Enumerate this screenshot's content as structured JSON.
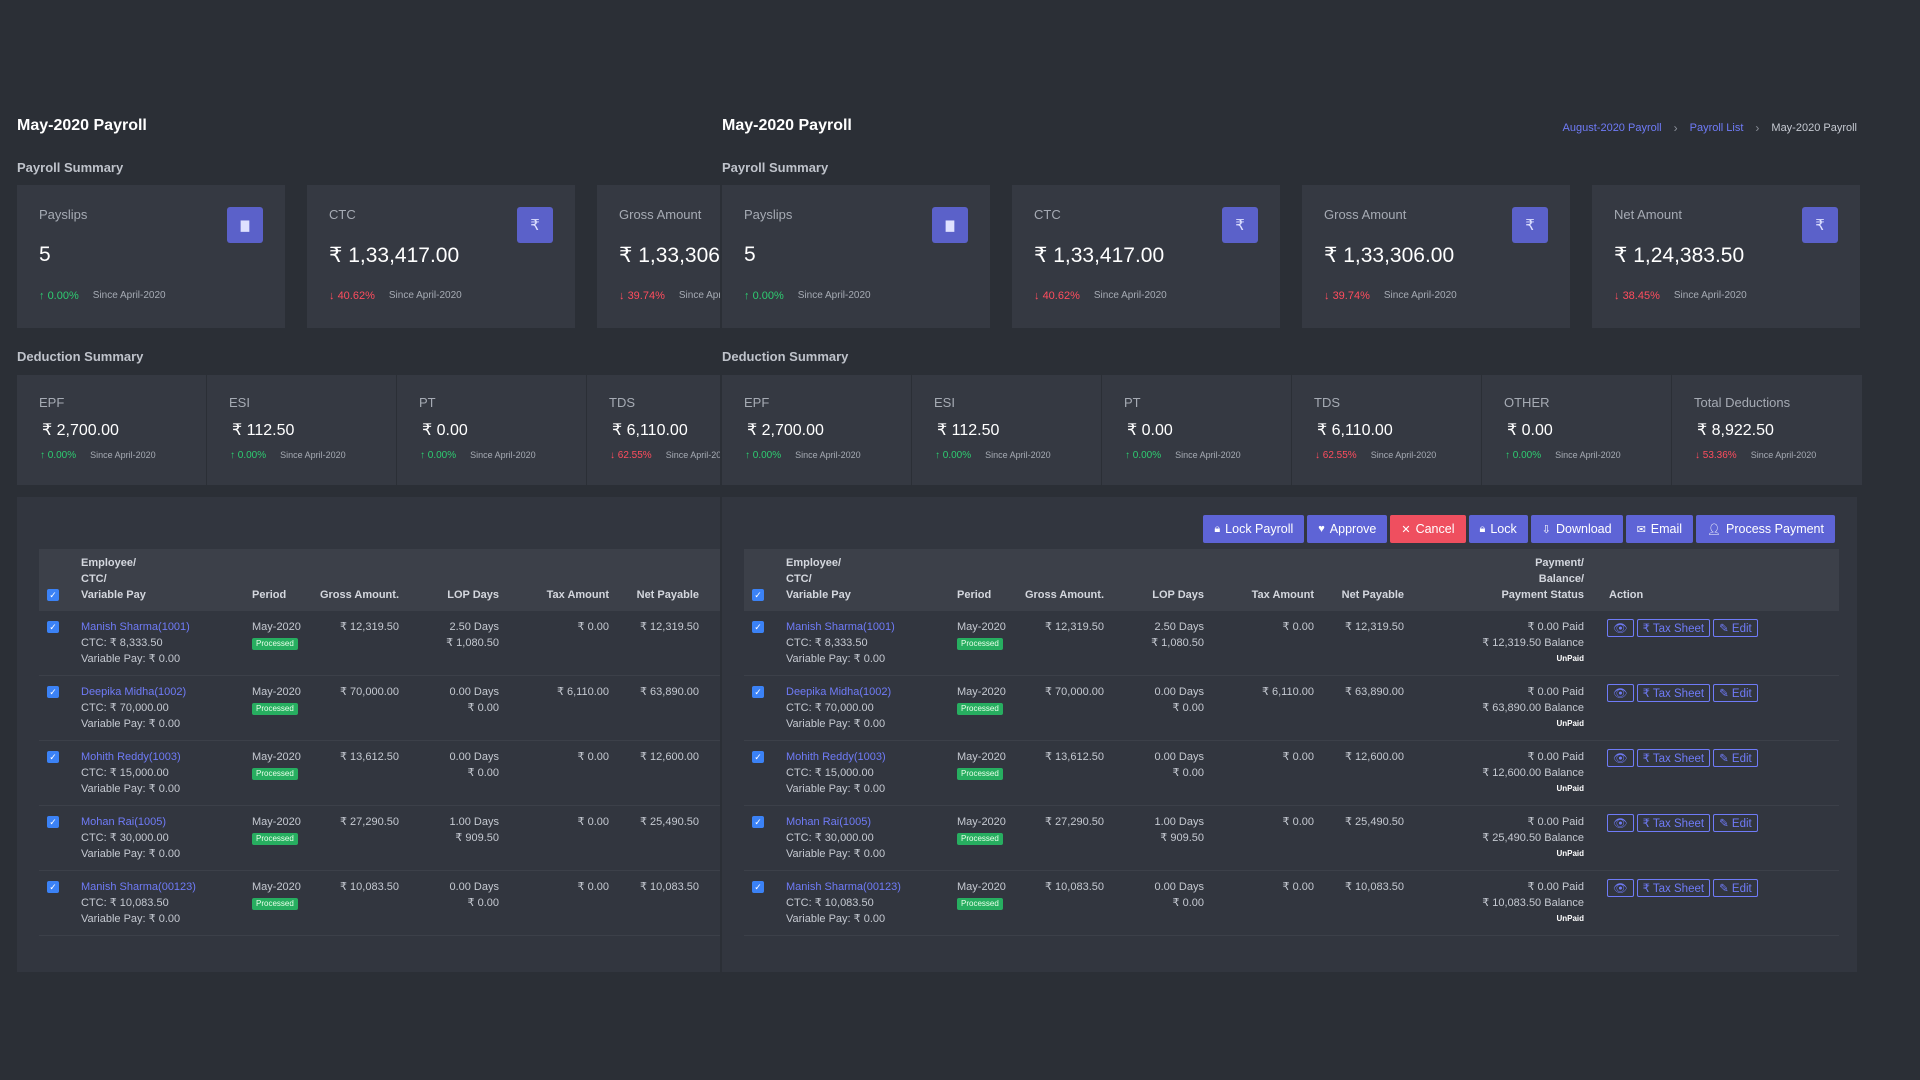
{
  "title": "May-2020 Payroll",
  "breadcrumb": [
    "August-2020 Payroll",
    "Payroll List",
    "May-2020 Payroll"
  ],
  "payroll_summary_title": "Payroll Summary",
  "deduction_summary_title": "Deduction Summary",
  "summary_cards": [
    {
      "label": "Payslips",
      "value": "5",
      "change": "0.00%",
      "direction": "up",
      "since": "Since April-2020",
      "icon": "file-icon"
    },
    {
      "label": "CTC",
      "value": "₹ 1,33,417.00",
      "change": "40.62%",
      "direction": "down",
      "since": "Since April-2020",
      "icon": "rupee-icon"
    },
    {
      "label": "Gross Amount",
      "value": "₹ 1,33,306.00",
      "change": "39.74%",
      "direction": "down",
      "since": "Since April-2020",
      "icon": "rupee-icon"
    },
    {
      "label": "Net Amount",
      "value": "₹ 1,24,383.50",
      "change": "38.45%",
      "direction": "down",
      "since": "Since April-2020",
      "icon": "rupee-icon"
    }
  ],
  "deductions": [
    {
      "label": "EPF",
      "value": "₹ 2,700.00",
      "change": "0.00%",
      "direction": "up",
      "since": "Since April-2020"
    },
    {
      "label": "ESI",
      "value": "₹ 112.50",
      "change": "0.00%",
      "direction": "up",
      "since": "Since April-2020"
    },
    {
      "label": "PT",
      "value": "₹ 0.00",
      "change": "0.00%",
      "direction": "up",
      "since": "Since April-2020"
    },
    {
      "label": "TDS",
      "value": "₹ 6,110.00",
      "change": "62.55%",
      "direction": "down",
      "since": "Since April-2020"
    },
    {
      "label": "OTHER",
      "value": "₹ 0.00",
      "change": "0.00%",
      "direction": "up",
      "since": "Since April-2020"
    },
    {
      "label": "Total Deductions",
      "value": "₹ 8,922.50",
      "change": "53.36%",
      "direction": "down",
      "since": "Since April-2020"
    }
  ],
  "toolbar": [
    {
      "label": "Lock Payroll",
      "icon": "lock-icon",
      "glyph": "🔒︎",
      "style": "primary"
    },
    {
      "label": "Approve",
      "icon": "heart-icon",
      "glyph": "♥",
      "style": "primary"
    },
    {
      "label": "Cancel",
      "icon": "close-icon",
      "glyph": "✕",
      "style": "danger"
    },
    {
      "label": "Lock",
      "icon": "lock-icon",
      "glyph": "🔒︎",
      "style": "primary"
    },
    {
      "label": "Download",
      "icon": "download-icon",
      "glyph": "⇩",
      "style": "primary"
    },
    {
      "label": "Email",
      "icon": "mail-icon",
      "glyph": "✉",
      "style": "primary"
    },
    {
      "label": "Process Payment",
      "icon": "user-icon",
      "glyph": "👤︎",
      "style": "primary"
    }
  ],
  "columns": {
    "employee": [
      "Employee/",
      "CTC/",
      "Variable Pay"
    ],
    "period": "Period",
    "gross": "Gross Amount.",
    "lop": "LOP Days",
    "tax": "Tax Amount",
    "net": "Net Payable",
    "payment": [
      "Payment/",
      "Balance/",
      "Payment Status"
    ],
    "action": "Action"
  },
  "row_actions": {
    "view": "👁︎",
    "tax_sheet": "₹ Tax Sheet",
    "edit": "✎ Edit"
  },
  "rows": [
    {
      "employee": "Manish Sharma(1001)",
      "ctc": "CTC: ₹ 8,333.50",
      "variable": "Variable Pay: ₹ 0.00",
      "period": "May-2020",
      "status": "Processed",
      "gross": "₹ 12,319.50",
      "lop_days": "2.50 Days",
      "lop_amount": "₹ 1,080.50",
      "tax": "₹ 0.00",
      "net": "₹ 12,319.50",
      "paid": "₹ 0.00 Paid",
      "balance": "₹ 12,319.50 Balance",
      "payment_status": "UnPaid"
    },
    {
      "employee": "Deepika Midha(1002)",
      "ctc": "CTC: ₹ 70,000.00",
      "variable": "Variable Pay: ₹ 0.00",
      "period": "May-2020",
      "status": "Processed",
      "gross": "₹ 70,000.00",
      "lop_days": "0.00 Days",
      "lop_amount": "₹ 0.00",
      "tax": "₹ 6,110.00",
      "net": "₹ 63,890.00",
      "paid": "₹ 0.00 Paid",
      "balance": "₹ 63,890.00 Balance",
      "payment_status": "UnPaid"
    },
    {
      "employee": "Mohith Reddy(1003)",
      "ctc": "CTC: ₹ 15,000.00",
      "variable": "Variable Pay: ₹ 0.00",
      "period": "May-2020",
      "status": "Processed",
      "gross": "₹ 13,612.50",
      "lop_days": "0.00 Days",
      "lop_amount": "₹ 0.00",
      "tax": "₹ 0.00",
      "net": "₹ 12,600.00",
      "paid": "₹ 0.00 Paid",
      "balance": "₹ 12,600.00 Balance",
      "payment_status": "UnPaid"
    },
    {
      "employee": "Mohan Rai(1005)",
      "ctc": "CTC: ₹ 30,000.00",
      "variable": "Variable Pay: ₹ 0.00",
      "period": "May-2020",
      "status": "Processed",
      "gross": "₹ 27,290.50",
      "lop_days": "1.00 Days",
      "lop_amount": "₹ 909.50",
      "tax": "₹ 0.00",
      "net": "₹ 25,490.50",
      "paid": "₹ 0.00 Paid",
      "balance": "₹ 25,490.50 Balance",
      "payment_status": "UnPaid"
    },
    {
      "employee": "Manish Sharma(00123)",
      "ctc": "CTC: ₹ 10,083.50",
      "variable": "Variable Pay: ₹ 0.00",
      "period": "May-2020",
      "status": "Processed",
      "gross": "₹ 10,083.50",
      "lop_days": "0.00 Days",
      "lop_amount": "₹ 0.00",
      "tax": "₹ 0.00",
      "net": "₹ 10,083.50",
      "paid": "₹ 0.00 Paid",
      "balance": "₹ 10,083.50 Balance",
      "payment_status": "UnPaid"
    }
  ],
  "colors": {
    "accent": "#5e64d6",
    "danger": "#ef4f5f",
    "up": "#2ecc71",
    "down": "#ff4d5e",
    "processed": "#27ae60",
    "link": "#6f7bf7"
  }
}
